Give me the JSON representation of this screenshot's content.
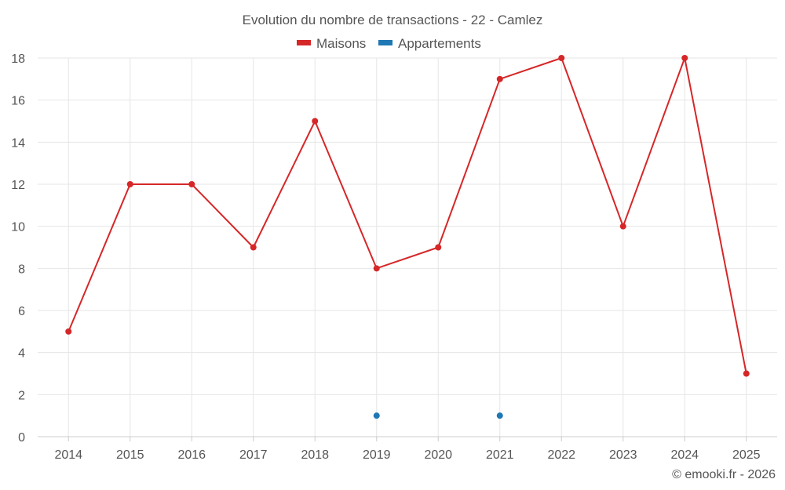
{
  "title": "Evolution du nombre de transactions - 22 - Camlez",
  "credit": "© emooki.fr - 2026",
  "colors": {
    "maisons": "#d62728",
    "appartements": "#1f77b4"
  },
  "chart_data": {
    "type": "line",
    "title": "Evolution du nombre de transactions - 22 - Camlez",
    "x": [
      "2014",
      "2015",
      "2016",
      "2017",
      "2018",
      "2019",
      "2020",
      "2021",
      "2022",
      "2023",
      "2024",
      "2025"
    ],
    "ylim": [
      0,
      18
    ],
    "yticks": [
      0,
      2,
      4,
      6,
      8,
      10,
      12,
      14,
      16,
      18
    ],
    "grid": true,
    "legend": "top-center",
    "series": [
      {
        "name": "Maisons",
        "color": "#d62728",
        "style": "line",
        "values": [
          5,
          12,
          12,
          9,
          15,
          8,
          9,
          17,
          18,
          10,
          18,
          3
        ]
      },
      {
        "name": "Appartements",
        "color": "#1f77b4",
        "style": "points",
        "values": [
          null,
          null,
          null,
          null,
          null,
          1,
          null,
          1,
          null,
          null,
          null,
          null
        ]
      }
    ]
  }
}
